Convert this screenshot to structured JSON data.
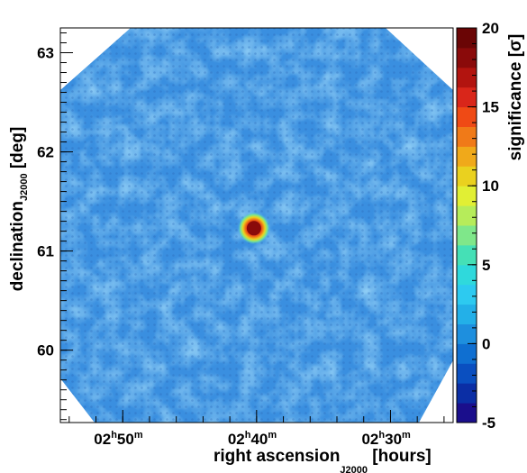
{
  "chart_data": {
    "type": "heatmap",
    "title": "",
    "xlabel": {
      "main": "right ascension",
      "sub": "J2000",
      "unit": "[hours]"
    },
    "ylabel": {
      "main": "declination",
      "sub": "J2000",
      "unit": "[deg]"
    },
    "x_ticks": [
      {
        "hours": "02",
        "minutes": "50",
        "value_hours": 2.8333
      },
      {
        "hours": "02",
        "minutes": "40",
        "value_hours": 2.6667
      },
      {
        "hours": "02",
        "minutes": "30",
        "value_hours": 2.5
      }
    ],
    "xlim_hours": [
      2.911,
      2.422
    ],
    "y_ticks": [
      "60",
      "61",
      "62",
      "63"
    ],
    "ylim": [
      59.27,
      63.25
    ],
    "colorbar": {
      "label": "significance [σ]",
      "range": [
        -5,
        20
      ],
      "ticks": [
        "-5",
        "0",
        "5",
        "10",
        "15",
        "20"
      ],
      "colors": [
        "#1a0e8c",
        "#0b2ea5",
        "#0a4fc0",
        "#0f6fd1",
        "#1e8fde",
        "#23b0e8",
        "#2dcaf0",
        "#2fd9dc",
        "#45e0b6",
        "#7fe78a",
        "#b6ec5a",
        "#e1ef34",
        "#ead11f",
        "#f0a91a",
        "#f07a18",
        "#ef4a15",
        "#d9261a",
        "#b2140f",
        "#8a0a0a",
        "#6a0505"
      ]
    },
    "background_level": -0.5,
    "hotspot": {
      "ra_hours": 2.67,
      "dec": 61.23,
      "peak_significance": 19
    }
  }
}
